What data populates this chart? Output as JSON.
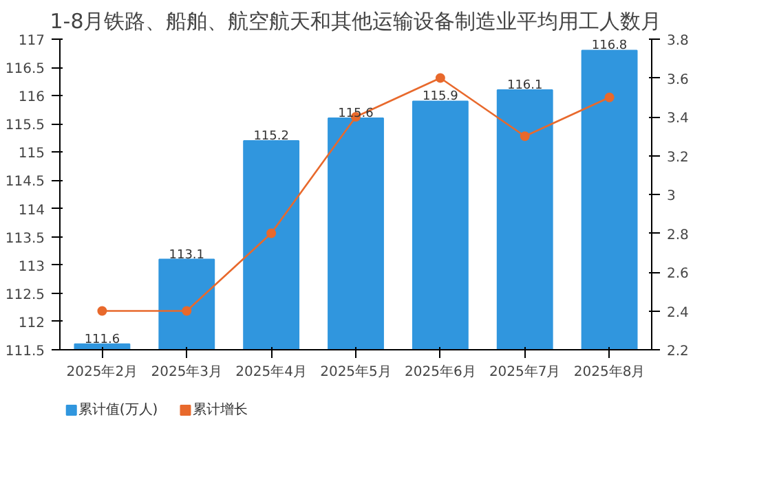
{
  "chart_data": {
    "type": "bar",
    "title": "1-8月铁路、船舶、航空航天和其他运输设备制造业平均用工人数月",
    "categories": [
      "2025年2月",
      "2025年3月",
      "2025年4月",
      "2025年5月",
      "2025年6月",
      "2025年7月",
      "2025年8月"
    ],
    "series": [
      {
        "name": "累计值(万人)",
        "color": "#3096de",
        "values": [
          111.6,
          113.1,
          115.2,
          115.6,
          115.9,
          116.1,
          116.8
        ],
        "value_labels": [
          "111.6",
          "113.1",
          "115.2",
          "115.6",
          "115.9",
          "116.1",
          "116.8"
        ]
      },
      {
        "name": "累计增长",
        "type": "line",
        "axis": "y2",
        "color": "#e8692c",
        "values": [
          2.4,
          2.4,
          2.8,
          3.4,
          3.6,
          3.3,
          3.5
        ]
      }
    ],
    "ylim": [
      111.5,
      117
    ],
    "yticks": [
      111.5,
      112,
      112.5,
      113,
      113.5,
      114,
      114.5,
      115,
      115.5,
      116,
      116.5,
      117
    ],
    "y2lim": [
      2.2,
      3.8
    ],
    "y2ticks": [
      2.2,
      2.4,
      2.6,
      2.8,
      3,
      3.2,
      3.4,
      3.6,
      3.8
    ],
    "grid": false,
    "legend": "bottom left",
    "marker": "circle"
  }
}
